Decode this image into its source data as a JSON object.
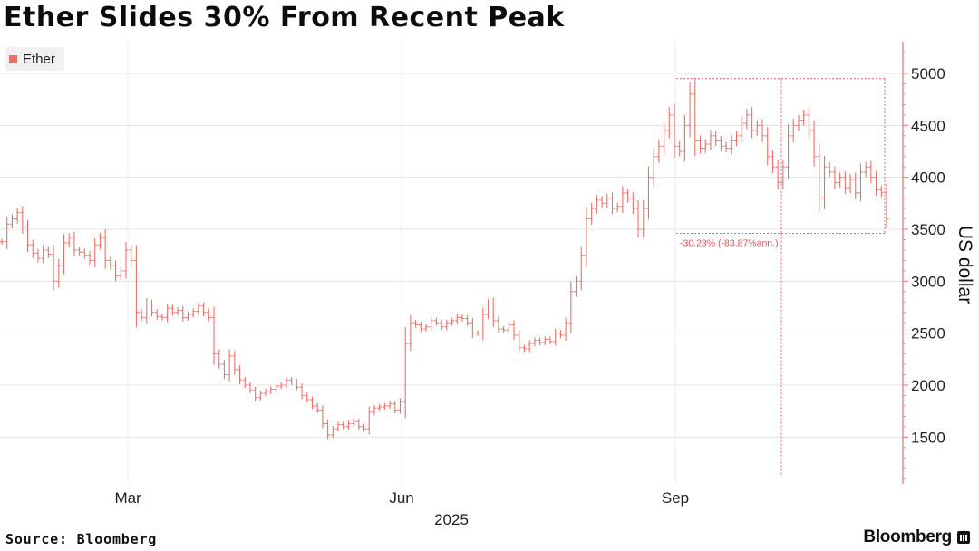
{
  "title": "Ether Slides 30% From Recent Peak",
  "legend": {
    "label": "Ether",
    "color": "#e8726b"
  },
  "source": "Source: Bloomberg",
  "brand": "Bloomberg",
  "colors": {
    "series": "#e8726b",
    "axis": "#e8726b",
    "annotation": "#e0505a",
    "grid": "#e3e3e3"
  },
  "chart_data": {
    "type": "line",
    "subtype": "ohlc-bars",
    "title": "Ether Slides 30% From Recent Peak",
    "ylabel": "US dollar",
    "xlabel": "2025",
    "x_ticks": [
      "Mar",
      "Jun",
      "Sep"
    ],
    "x_tick_days": [
      60,
      152,
      244
    ],
    "x_range_days": [
      17,
      315
    ],
    "ylim": [
      1050,
      5300
    ],
    "y_ticks": [
      1500,
      2000,
      2500,
      3000,
      3500,
      4000,
      4500,
      5000
    ],
    "year_label": "2025",
    "series": [
      {
        "name": "Ether",
        "values": [
          3380,
          3550,
          3600,
          3660,
          3520,
          3350,
          3270,
          3220,
          3300,
          3260,
          3000,
          3150,
          3370,
          3420,
          3300,
          3280,
          3250,
          3200,
          3350,
          3420,
          3200,
          3150,
          3050,
          3100,
          3300,
          3200,
          2700,
          2650,
          2780,
          2700,
          2660,
          2650,
          2740,
          2700,
          2720,
          2650,
          2680,
          2710,
          2760,
          2700,
          2650,
          2300,
          2200,
          2100,
          2280,
          2150,
          2050,
          2000,
          1950,
          1880,
          1920,
          1940,
          1960,
          1990,
          2000,
          2050,
          2030,
          1980,
          1900,
          1860,
          1800,
          1760,
          1630,
          1520,
          1580,
          1620,
          1600,
          1630,
          1650,
          1600,
          1580,
          1740,
          1780,
          1790,
          1800,
          1820,
          1760,
          1840,
          2400,
          2600,
          2580,
          2540,
          2560,
          2620,
          2600,
          2560,
          2600,
          2620,
          2650,
          2640,
          2600,
          2500,
          2500,
          2680,
          2780,
          2620,
          2540,
          2530,
          2580,
          2480,
          2360,
          2350,
          2400,
          2430,
          2410,
          2440,
          2420,
          2500,
          2480,
          2600,
          2900,
          3000,
          3250,
          3600,
          3700,
          3780,
          3750,
          3800,
          3700,
          3720,
          3850,
          3800,
          3700,
          3500,
          3700,
          4000,
          4200,
          4300,
          4450,
          4600,
          4300,
          4250,
          4500,
          4800,
          4350,
          4280,
          4320,
          4400,
          4350,
          4300,
          4280,
          4350,
          4400,
          4520,
          4600,
          4450,
          4500,
          4400,
          4200,
          4100,
          3950,
          4100,
          4400,
          4500,
          4550,
          4600,
          4450,
          4200,
          3800,
          4100,
          4050,
          3950,
          4000,
          3900,
          3980,
          3850,
          4050,
          4100,
          4000,
          3880,
          3850,
          3600
        ]
      }
    ],
    "annotations": {
      "peak_value": 4950,
      "trough_value": 3460,
      "change_label": "-30.23% (-83.87%ann.)"
    }
  }
}
